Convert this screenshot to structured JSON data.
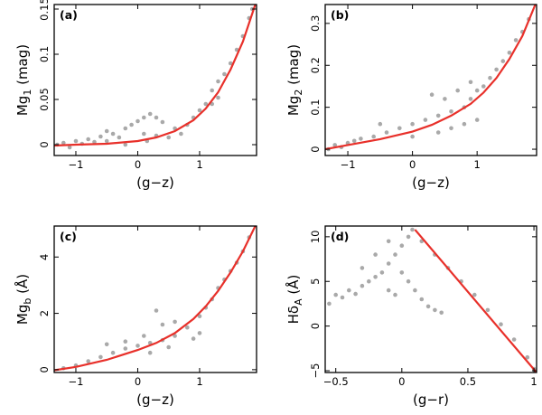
{
  "chart_data": [
    {
      "type": "scatter",
      "panel": "(a)",
      "xlabel": "(g−z)",
      "ylabel_main": "Mg",
      "ylabel_sub": "1",
      "ylabel_unit": " (mag)",
      "xlim": [
        -1.35,
        1.92
      ],
      "ylim": [
        -0.012,
        0.155
      ],
      "xticks": [
        -1,
        0,
        1
      ],
      "xticklabels": [
        "−1",
        "0",
        "1"
      ],
      "yticks": [
        0,
        0.05,
        0.1,
        0.15
      ],
      "yticklabels": [
        "0",
        "0.05",
        "0.1",
        "0.15"
      ],
      "fit_line": {
        "color": "#e8302a",
        "x": [
          -1.35,
          -1.0,
          -0.5,
          0.0,
          0.3,
          0.6,
          0.9,
          1.1,
          1.3,
          1.5,
          1.7,
          1.9
        ],
        "y": [
          -0.001,
          0.0,
          0.001,
          0.004,
          0.008,
          0.015,
          0.027,
          0.04,
          0.058,
          0.083,
          0.114,
          0.155
        ]
      },
      "point_color": "#a9a9a9",
      "points": [
        {
          "x": -1.3,
          "y": 0.0
        },
        {
          "x": -1.2,
          "y": 0.002
        },
        {
          "x": -1.1,
          "y": -0.003
        },
        {
          "x": -1.0,
          "y": 0.004
        },
        {
          "x": -0.9,
          "y": 0.001
        },
        {
          "x": -0.8,
          "y": 0.006
        },
        {
          "x": -0.7,
          "y": 0.003
        },
        {
          "x": -0.6,
          "y": 0.009
        },
        {
          "x": -0.5,
          "y": 0.004
        },
        {
          "x": -0.4,
          "y": 0.012
        },
        {
          "x": -0.3,
          "y": 0.008
        },
        {
          "x": -0.2,
          "y": 0.018
        },
        {
          "x": -0.1,
          "y": 0.022
        },
        {
          "x": 0.0,
          "y": 0.026
        },
        {
          "x": 0.1,
          "y": 0.03
        },
        {
          "x": 0.2,
          "y": 0.034
        },
        {
          "x": 0.3,
          "y": 0.03
        },
        {
          "x": 0.4,
          "y": 0.025
        },
        {
          "x": 0.1,
          "y": 0.012
        },
        {
          "x": 0.3,
          "y": 0.01
        },
        {
          "x": 0.5,
          "y": 0.008
        },
        {
          "x": 0.6,
          "y": 0.018
        },
        {
          "x": 0.8,
          "y": 0.022
        },
        {
          "x": 0.9,
          "y": 0.03
        },
        {
          "x": 1.0,
          "y": 0.038
        },
        {
          "x": 1.1,
          "y": 0.045
        },
        {
          "x": 1.2,
          "y": 0.06
        },
        {
          "x": 1.3,
          "y": 0.07
        },
        {
          "x": 1.4,
          "y": 0.078
        },
        {
          "x": 1.5,
          "y": 0.09
        },
        {
          "x": 1.6,
          "y": 0.105
        },
        {
          "x": 1.7,
          "y": 0.12
        },
        {
          "x": 1.8,
          "y": 0.14
        },
        {
          "x": 1.85,
          "y": 0.15
        },
        {
          "x": 1.2,
          "y": 0.045
        },
        {
          "x": 1.3,
          "y": 0.052
        },
        {
          "x": 0.7,
          "y": 0.012
        },
        {
          "x": -0.5,
          "y": 0.015
        },
        {
          "x": -0.2,
          "y": 0.0
        },
        {
          "x": 0.15,
          "y": 0.004
        }
      ]
    },
    {
      "type": "scatter",
      "panel": "(b)",
      "xlabel": "(g−z)",
      "ylabel_main": "Mg",
      "ylabel_sub": "2",
      "ylabel_unit": " (mag)",
      "xlim": [
        -1.35,
        1.92
      ],
      "ylim": [
        -0.015,
        0.345
      ],
      "xticks": [
        -1,
        0,
        1
      ],
      "xticklabels": [
        "−1",
        "0",
        "1"
      ],
      "yticks": [
        0,
        0.1,
        0.2,
        0.3
      ],
      "yticklabels": [
        "0",
        "0.1",
        "0.2",
        "0.3"
      ],
      "fit_line": {
        "color": "#e8302a",
        "x": [
          -1.35,
          -1.0,
          -0.5,
          0.0,
          0.3,
          0.6,
          0.9,
          1.1,
          1.3,
          1.5,
          1.7,
          1.9
        ],
        "y": [
          0.0,
          0.01,
          0.024,
          0.042,
          0.058,
          0.08,
          0.108,
          0.135,
          0.17,
          0.215,
          0.27,
          0.345
        ]
      },
      "point_color": "#a9a9a9",
      "points": [
        {
          "x": -1.3,
          "y": 0.0
        },
        {
          "x": -1.2,
          "y": 0.01
        },
        {
          "x": -1.1,
          "y": 0.005
        },
        {
          "x": -1.0,
          "y": 0.015
        },
        {
          "x": -0.9,
          "y": 0.02
        },
        {
          "x": -0.8,
          "y": 0.025
        },
        {
          "x": -0.6,
          "y": 0.03
        },
        {
          "x": -0.4,
          "y": 0.04
        },
        {
          "x": -0.2,
          "y": 0.05
        },
        {
          "x": 0.0,
          "y": 0.06
        },
        {
          "x": 0.2,
          "y": 0.07
        },
        {
          "x": 0.4,
          "y": 0.08
        },
        {
          "x": 0.6,
          "y": 0.09
        },
        {
          "x": 0.8,
          "y": 0.1
        },
        {
          "x": 0.9,
          "y": 0.12
        },
        {
          "x": 1.0,
          "y": 0.14
        },
        {
          "x": 1.1,
          "y": 0.15
        },
        {
          "x": 1.2,
          "y": 0.17
        },
        {
          "x": 1.3,
          "y": 0.19
        },
        {
          "x": 1.4,
          "y": 0.21
        },
        {
          "x": 1.5,
          "y": 0.23
        },
        {
          "x": 1.6,
          "y": 0.26
        },
        {
          "x": 1.7,
          "y": 0.28
        },
        {
          "x": 1.8,
          "y": 0.31
        },
        {
          "x": 0.4,
          "y": 0.04
        },
        {
          "x": 0.6,
          "y": 0.05
        },
        {
          "x": 0.8,
          "y": 0.06
        },
        {
          "x": 1.0,
          "y": 0.07
        },
        {
          "x": 0.0,
          "y": 0.03
        },
        {
          "x": -0.5,
          "y": 0.06
        },
        {
          "x": 0.3,
          "y": 0.13
        },
        {
          "x": 0.5,
          "y": 0.12
        },
        {
          "x": 0.7,
          "y": 0.14
        },
        {
          "x": 0.9,
          "y": 0.16
        }
      ]
    },
    {
      "type": "scatter",
      "panel": "(c)",
      "xlabel": "(g−z)",
      "ylabel_main": "Mg",
      "ylabel_sub": "b",
      "ylabel_unit": " (Å)",
      "xlim": [
        -1.35,
        1.92
      ],
      "ylim": [
        -0.1,
        5.1
      ],
      "xticks": [
        -1,
        0,
        1
      ],
      "xticklabels": [
        "−1",
        "0",
        "1"
      ],
      "yticks": [
        0,
        2,
        4
      ],
      "yticklabels": [
        "0",
        "2",
        "4"
      ],
      "fit_line": {
        "color": "#e8302a",
        "x": [
          -1.35,
          -1.0,
          -0.5,
          0.0,
          0.3,
          0.6,
          0.9,
          1.1,
          1.3,
          1.5,
          1.7,
          1.9
        ],
        "y": [
          -0.02,
          0.1,
          0.35,
          0.7,
          0.95,
          1.3,
          1.8,
          2.25,
          2.8,
          3.45,
          4.2,
          5.1
        ]
      },
      "point_color": "#a9a9a9",
      "points": [
        {
          "x": -1.2,
          "y": 0.05
        },
        {
          "x": -1.0,
          "y": 0.15
        },
        {
          "x": -0.8,
          "y": 0.3
        },
        {
          "x": -0.6,
          "y": 0.45
        },
        {
          "x": -0.4,
          "y": 0.6
        },
        {
          "x": -0.2,
          "y": 0.75
        },
        {
          "x": 0.0,
          "y": 0.85
        },
        {
          "x": 0.2,
          "y": 0.95
        },
        {
          "x": 0.4,
          "y": 1.05
        },
        {
          "x": 0.6,
          "y": 1.2
        },
        {
          "x": 0.8,
          "y": 1.5
        },
        {
          "x": 1.0,
          "y": 1.9
        },
        {
          "x": 1.1,
          "y": 2.2
        },
        {
          "x": 1.2,
          "y": 2.5
        },
        {
          "x": 1.3,
          "y": 2.9
        },
        {
          "x": 1.4,
          "y": 3.2
        },
        {
          "x": 1.5,
          "y": 3.5
        },
        {
          "x": 1.6,
          "y": 3.8
        },
        {
          "x": 1.7,
          "y": 4.2
        },
        {
          "x": 1.8,
          "y": 4.7
        },
        {
          "x": -0.5,
          "y": 0.9
        },
        {
          "x": -0.2,
          "y": 1.0
        },
        {
          "x": 0.1,
          "y": 1.2
        },
        {
          "x": 0.4,
          "y": 1.6
        },
        {
          "x": 0.6,
          "y": 1.7
        },
        {
          "x": 0.2,
          "y": 0.6
        },
        {
          "x": 0.5,
          "y": 0.8
        },
        {
          "x": 0.9,
          "y": 1.1
        },
        {
          "x": 1.0,
          "y": 1.3
        },
        {
          "x": 0.3,
          "y": 2.1
        }
      ]
    },
    {
      "type": "scatter",
      "panel": "(d)",
      "xlabel": "(g−r)",
      "ylabel_main": "Hδ",
      "ylabel_sub": "A",
      "ylabel_unit": " (Å)",
      "xlim": [
        -0.58,
        1.02
      ],
      "ylim": [
        -5.2,
        11.2
      ],
      "xticks": [
        -0.5,
        0,
        0.5,
        1
      ],
      "xticklabels": [
        "−0.5",
        "0",
        "0.5",
        "1"
      ],
      "yticks": [
        -5,
        0,
        5,
        10
      ],
      "yticklabels": [
        "−5",
        "0",
        "5",
        "10"
      ],
      "fit_line": {
        "color": "#e8302a",
        "x": [
          0.1,
          1.02
        ],
        "y": [
          10.8,
          -5.2
        ]
      },
      "point_color": "#a9a9a9",
      "points": [
        {
          "x": -0.55,
          "y": 2.5
        },
        {
          "x": -0.5,
          "y": 3.5
        },
        {
          "x": -0.45,
          "y": 3.2
        },
        {
          "x": -0.4,
          "y": 4.0
        },
        {
          "x": -0.35,
          "y": 3.6
        },
        {
          "x": -0.3,
          "y": 4.5
        },
        {
          "x": -0.25,
          "y": 5.0
        },
        {
          "x": -0.2,
          "y": 5.5
        },
        {
          "x": -0.15,
          "y": 6.0
        },
        {
          "x": -0.1,
          "y": 7.0
        },
        {
          "x": -0.05,
          "y": 8.0
        },
        {
          "x": 0.0,
          "y": 9.0
        },
        {
          "x": 0.05,
          "y": 10.0
        },
        {
          "x": 0.08,
          "y": 10.8
        },
        {
          "x": -0.2,
          "y": 8.0
        },
        {
          "x": -0.1,
          "y": 9.5
        },
        {
          "x": 0.0,
          "y": 6.0
        },
        {
          "x": 0.05,
          "y": 5.0
        },
        {
          "x": 0.1,
          "y": 4.0
        },
        {
          "x": 0.15,
          "y": 3.0
        },
        {
          "x": 0.2,
          "y": 2.2
        },
        {
          "x": 0.25,
          "y": 1.8
        },
        {
          "x": 0.3,
          "y": 1.5
        },
        {
          "x": 0.15,
          "y": 9.5
        },
        {
          "x": 0.25,
          "y": 8.0
        },
        {
          "x": 0.35,
          "y": 6.5
        },
        {
          "x": 0.45,
          "y": 5.0
        },
        {
          "x": 0.55,
          "y": 3.5
        },
        {
          "x": 0.65,
          "y": 1.8
        },
        {
          "x": 0.75,
          "y": 0.2
        },
        {
          "x": 0.85,
          "y": -1.5
        },
        {
          "x": 0.95,
          "y": -3.5
        },
        {
          "x": 1.0,
          "y": -4.8
        },
        {
          "x": -0.3,
          "y": 6.5
        },
        {
          "x": -0.1,
          "y": 4.0
        },
        {
          "x": -0.05,
          "y": 3.5
        }
      ]
    }
  ]
}
